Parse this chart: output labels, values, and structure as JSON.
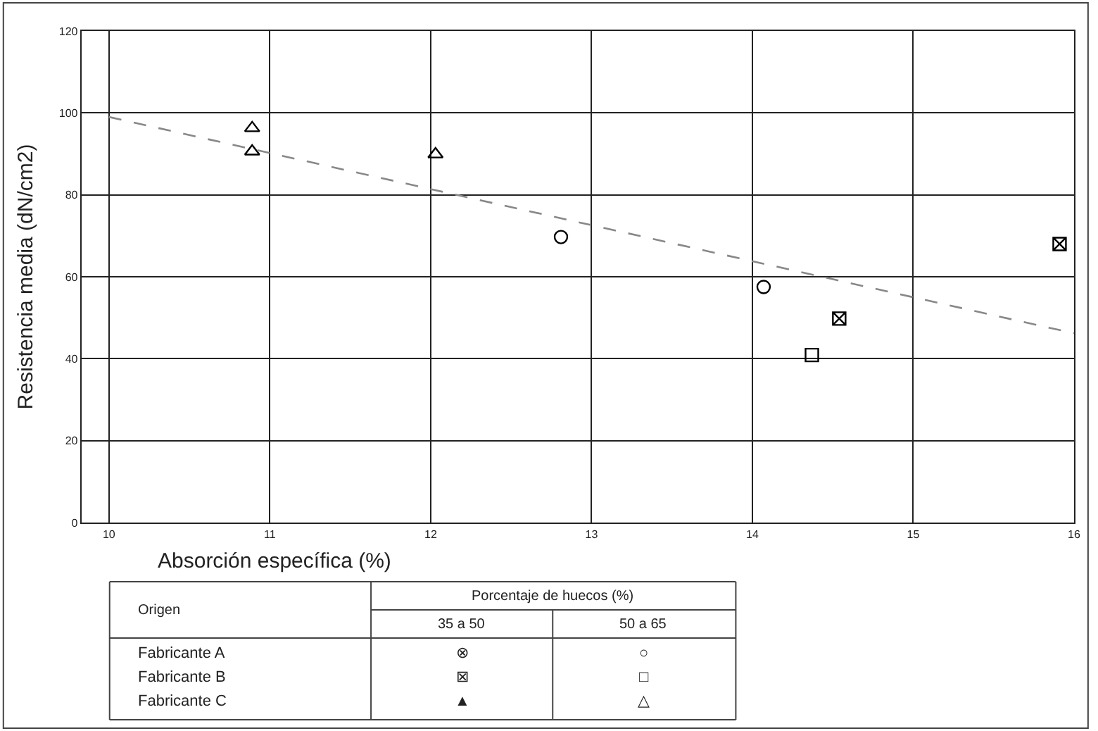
{
  "chart_data": {
    "type": "scatter",
    "xlabel": "Absorción específica (%)",
    "ylabel": "Resistencia media (dN/cm2)",
    "xlim": [
      9.83,
      16
    ],
    "xticks": [
      10,
      11,
      12,
      13,
      14,
      15,
      16
    ],
    "ylim": [
      0,
      120
    ],
    "yticks": [
      0,
      20,
      40,
      60,
      80,
      100,
      120
    ],
    "grid": true,
    "series": [
      {
        "color": "#000000",
        "marker": "circle",
        "x": [
          12.81,
          14.07
        ],
        "values": [
          69.7,
          57.5
        ]
      },
      {
        "color": "#000000",
        "marker": "cross",
        "x": [
          14.54,
          15.91
        ],
        "values": [
          49.8,
          68.0
        ]
      },
      {
        "color": "#000000",
        "marker": "square",
        "x": [
          14.37
        ],
        "values": [
          40.9
        ]
      },
      {
        "color": "#000000",
        "marker": "triangle",
        "x": [
          10.89,
          10.89,
          12.03
        ],
        "values": [
          96.3,
          90.6,
          89.9
        ]
      },
      {
        "type": "line",
        "color": "#888888",
        "line_style": "dashed",
        "marker": "none",
        "x": [
          10,
          16
        ],
        "values": [
          99,
          46.2
        ]
      }
    ],
    "annotations": [
      "Origen",
      "Porcentaje de huecos (%)",
      "35 a 50",
      "50 a 65",
      "Fabricante A",
      "⊗",
      "○",
      "Fabricante B",
      "⊠",
      "□",
      "Fabricante C",
      "▲",
      "△"
    ]
  }
}
